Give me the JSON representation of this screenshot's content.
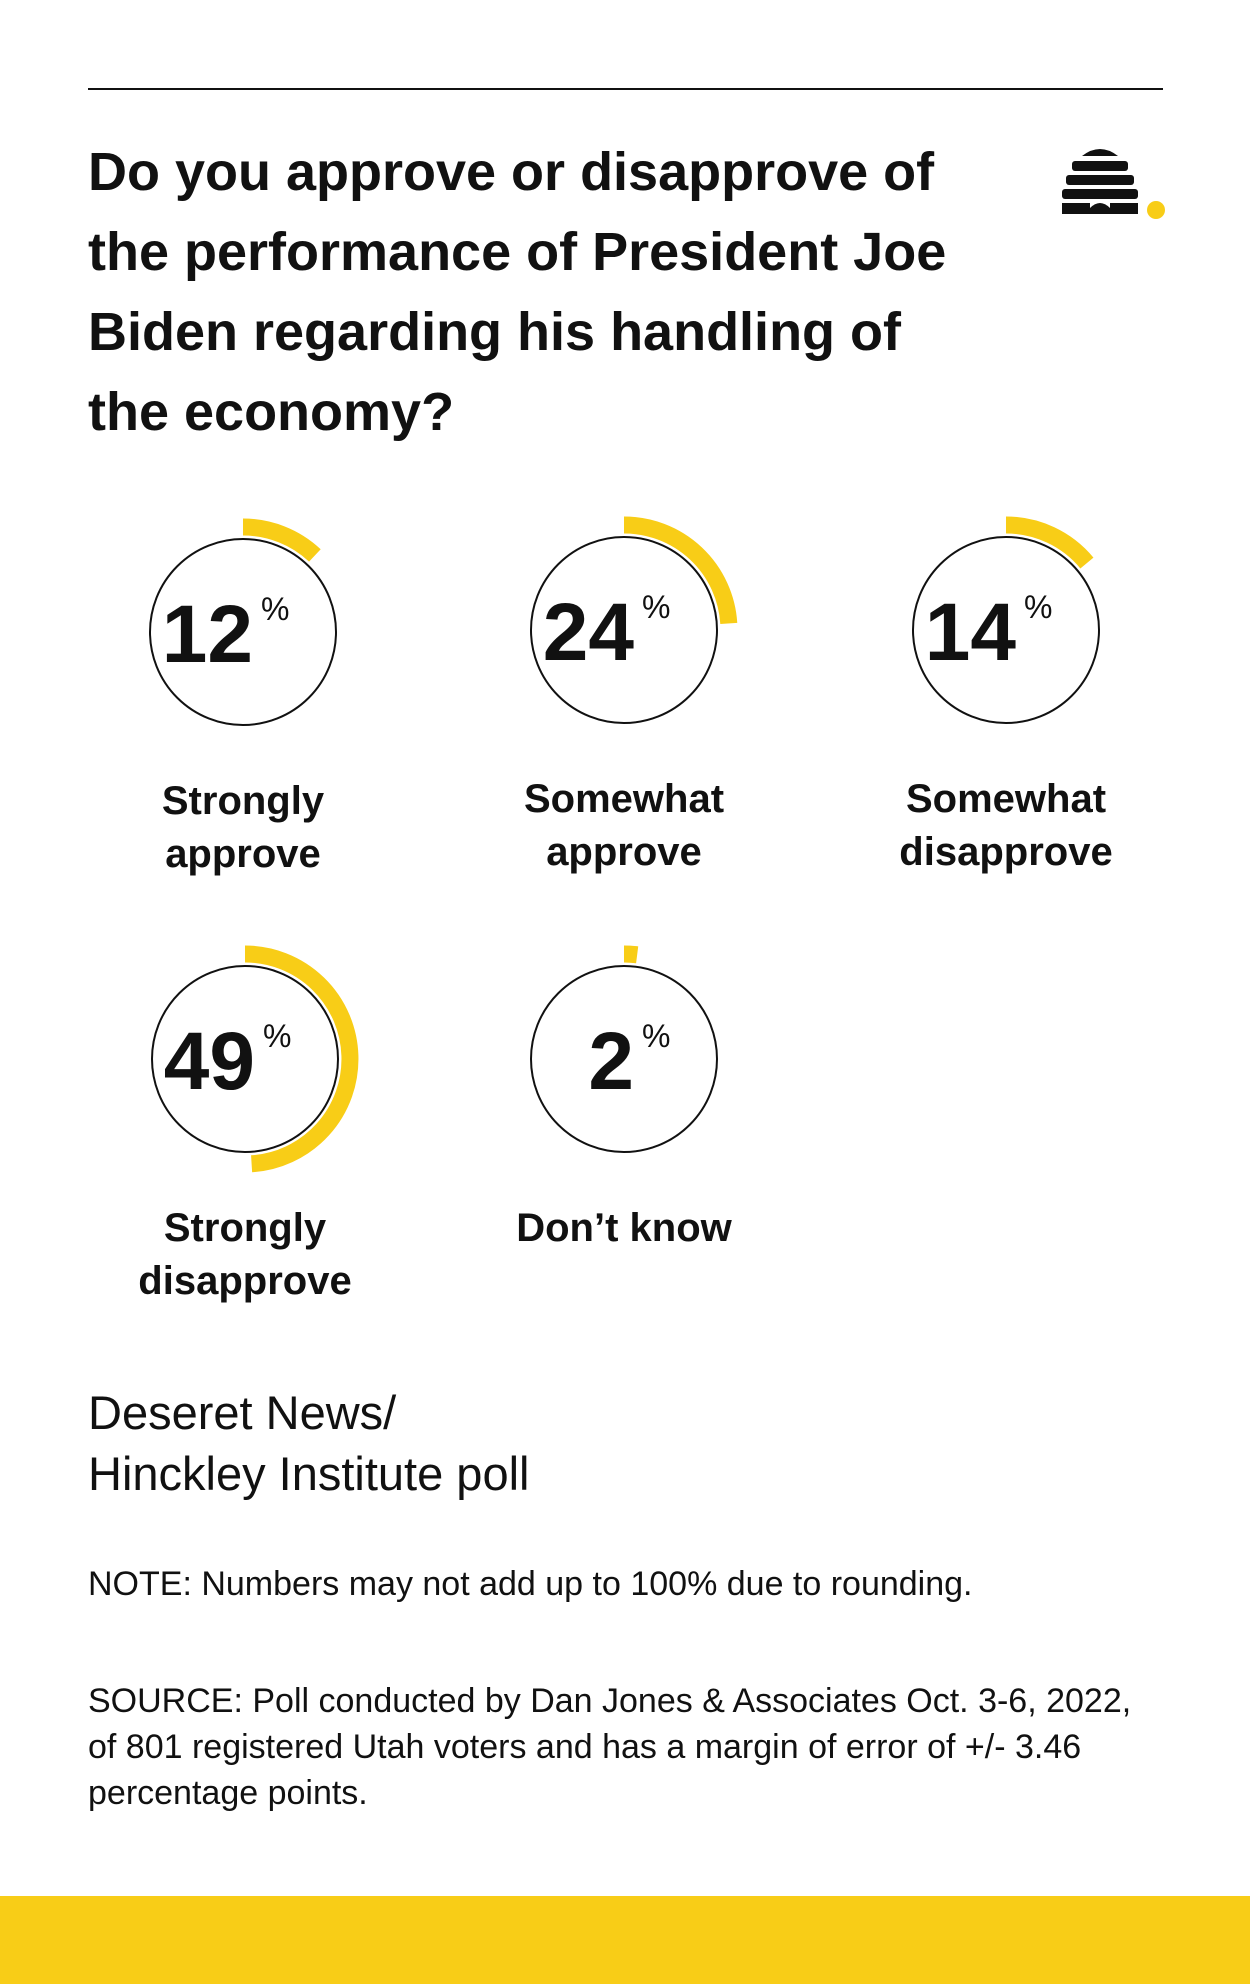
{
  "headline": "Do you approve or disapprove of the performance of President Joe Biden regarding his handling of the economy?",
  "poll_name_line1": "Deseret News/",
  "poll_name_line2": "Hinckley Institute poll",
  "note": "NOTE: Numbers may not add up to 100% due to rounding.",
  "source": "SOURCE: Poll conducted by Dan Jones & Associates Oct. 3-6, 2022, of 801 registered Utah voters and has a margin of error of +/- 3.46 percentage points.",
  "colors": {
    "accent": "#F8CD17",
    "ink": "#111111",
    "background": "#FFFFFF"
  },
  "logo_icon": "beehive-logo-icon",
  "chart_data": {
    "type": "pie",
    "unit": "%",
    "categories": [
      {
        "label_lines": [
          "Strongly",
          "approve"
        ],
        "value": 12
      },
      {
        "label_lines": [
          "Somewhat",
          "approve"
        ],
        "value": 24
      },
      {
        "label_lines": [
          "Somewhat",
          "disapprove"
        ],
        "value": 14
      },
      {
        "label_lines": [
          "Strongly",
          "disapprove"
        ],
        "value": 49
      },
      {
        "label_lines": [
          "Don’t know"
        ],
        "value": 2
      }
    ]
  }
}
